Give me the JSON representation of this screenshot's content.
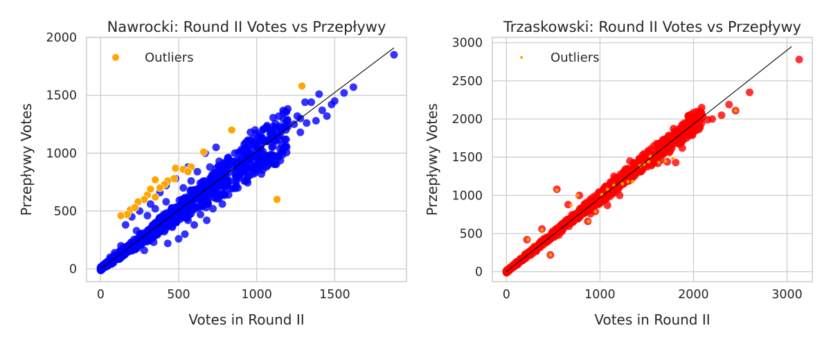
{
  "chart_data": [
    {
      "type": "scatter",
      "title": "Nawrocki: Round II Votes vs Przepływy",
      "xlabel": "Votes in Round II",
      "ylabel": "Przepływy Votes",
      "xlim": [
        -90,
        1960
      ],
      "ylim": [
        -110,
        2000
      ],
      "xticks": [
        0,
        500,
        1000,
        1500
      ],
      "yticks": [
        0,
        500,
        1000,
        1500,
        2000
      ],
      "grid": true,
      "legend": {
        "position": "top-left",
        "entries": [
          "Outliers"
        ]
      },
      "main_color": "#0000ff",
      "outlier_color": "#ffa500",
      "reference_line": {
        "from": [
          0,
          0
        ],
        "to": [
          1880,
          1910
        ],
        "color": "#000000"
      },
      "band": {
        "x_max": 1200,
        "lower_slope": 0.8,
        "upper_slope": 1.18
      },
      "points": [
        [
          430,
          220
        ],
        [
          1130,
          600
        ],
        [
          1880,
          1850
        ],
        [
          1620,
          1570
        ],
        [
          1560,
          1520
        ],
        [
          1480,
          1420
        ],
        [
          1350,
          1440
        ],
        [
          1310,
          1440
        ],
        [
          1450,
          1320
        ],
        [
          1420,
          1370
        ],
        [
          1280,
          1300
        ],
        [
          1240,
          1250
        ],
        [
          1200,
          1230
        ],
        [
          1160,
          1190
        ],
        [
          1100,
          1140
        ],
        [
          1050,
          1110
        ],
        [
          990,
          1200
        ],
        [
          950,
          1100
        ],
        [
          900,
          920
        ],
        [
          850,
          880
        ],
        [
          800,
          830
        ],
        [
          760,
          800
        ],
        [
          700,
          760
        ],
        [
          650,
          700
        ],
        [
          600,
          640
        ],
        [
          550,
          590
        ],
        [
          500,
          540
        ],
        [
          450,
          480
        ],
        [
          400,
          430
        ],
        [
          350,
          380
        ],
        [
          300,
          330
        ],
        [
          250,
          280
        ],
        [
          200,
          220
        ],
        [
          150,
          170
        ],
        [
          100,
          110
        ],
        [
          50,
          60
        ],
        [
          20,
          20
        ],
        [
          5,
          5
        ],
        [
          670,
          1000
        ],
        [
          740,
          1050
        ],
        [
          560,
          880
        ],
        [
          480,
          780
        ],
        [
          420,
          720
        ],
        [
          380,
          660
        ],
        [
          320,
          560
        ],
        [
          250,
          500
        ],
        [
          200,
          450
        ],
        [
          160,
          380
        ],
        [
          540,
          300
        ],
        [
          680,
          420
        ],
        [
          780,
          560
        ],
        [
          880,
          700
        ],
        [
          980,
          820
        ],
        [
          1080,
          960
        ],
        [
          600,
          380
        ],
        [
          720,
          520
        ],
        [
          820,
          640
        ],
        [
          920,
          760
        ],
        [
          500,
          260
        ],
        [
          640,
          470
        ],
        [
          340,
          230
        ],
        [
          280,
          160
        ],
        [
          460,
          360
        ],
        [
          560,
          420
        ],
        [
          860,
          1000
        ],
        [
          1000,
          1080
        ],
        [
          1150,
          1040
        ],
        [
          1040,
          940
        ],
        [
          1280,
          1180
        ],
        [
          1380,
          1280
        ],
        [
          1400,
          1510
        ],
        [
          1500,
          1450
        ],
        [
          1260,
          1320
        ],
        [
          760,
          930
        ],
        [
          660,
          600
        ],
        [
          420,
          580
        ],
        [
          530,
          700
        ],
        [
          230,
          330
        ],
        [
          130,
          200
        ],
        [
          90,
          140
        ],
        [
          60,
          100
        ],
        [
          30,
          50
        ],
        [
          180,
          180
        ],
        [
          120,
          90
        ],
        [
          260,
          220
        ],
        [
          360,
          300
        ],
        [
          400,
          380
        ],
        [
          460,
          520
        ],
        [
          580,
          760
        ],
        [
          620,
          840
        ],
        [
          700,
          880
        ],
        [
          960,
          1180
        ],
        [
          1040,
          1200
        ],
        [
          1120,
          1220
        ],
        [
          1180,
          1120
        ],
        [
          300,
          460
        ],
        [
          350,
          520
        ],
        [
          1010,
          950
        ],
        [
          930,
          980
        ],
        [
          1320,
          1260
        ]
      ],
      "outliers": [
        [
          1290,
          1580
        ],
        [
          840,
          1200
        ],
        [
          660,
          1010
        ],
        [
          580,
          880
        ],
        [
          480,
          870
        ],
        [
          530,
          860
        ],
        [
          560,
          840
        ],
        [
          470,
          780
        ],
        [
          430,
          760
        ],
        [
          350,
          770
        ],
        [
          410,
          730
        ],
        [
          380,
          700
        ],
        [
          300,
          640
        ],
        [
          350,
          620
        ],
        [
          280,
          600
        ],
        [
          240,
          580
        ],
        [
          190,
          510
        ],
        [
          170,
          470
        ],
        [
          130,
          460
        ],
        [
          220,
          530
        ],
        [
          320,
          690
        ],
        [
          1130,
          600
        ]
      ]
    },
    {
      "type": "scatter",
      "title": "Trzaskowski: Round II Votes vs Przepływy",
      "xlabel": "Votes in Round II",
      "ylabel": "Przepływy Votes",
      "xlim": [
        -150,
        3270
      ],
      "ylim": [
        -130,
        3070
      ],
      "xticks": [
        0,
        1000,
        2000,
        3000
      ],
      "yticks": [
        0,
        500,
        1000,
        1500,
        2000,
        2500,
        3000
      ],
      "grid": true,
      "legend": {
        "position": "top-left",
        "entries": [
          "Outliers"
        ]
      },
      "main_color": "#ff0000",
      "outlier_color": "#ffa500",
      "reference_line": {
        "from": [
          0,
          0
        ],
        "to": [
          3050,
          2950
        ],
        "color": "#000000"
      },
      "band": {
        "x_max": 2100,
        "lower_slope": 0.9,
        "upper_slope": 1.05
      },
      "points": [
        [
          3130,
          2780
        ],
        [
          2600,
          2350
        ],
        [
          2450,
          2110
        ],
        [
          2380,
          2190
        ],
        [
          2300,
          2050
        ],
        [
          2200,
          2000
        ],
        [
          2150,
          1990
        ],
        [
          2050,
          1980
        ],
        [
          1950,
          1990
        ],
        [
          1900,
          1880
        ],
        [
          1800,
          1780
        ],
        [
          1750,
          1650
        ],
        [
          1700,
          1600
        ],
        [
          1600,
          1550
        ],
        [
          1550,
          1500
        ],
        [
          1500,
          1400
        ],
        [
          1450,
          1360
        ],
        [
          1400,
          1300
        ],
        [
          1350,
          1250
        ],
        [
          1300,
          1200
        ],
        [
          1250,
          1160
        ],
        [
          1200,
          1100
        ],
        [
          1100,
          1050
        ],
        [
          1000,
          950
        ],
        [
          900,
          870
        ],
        [
          800,
          780
        ],
        [
          700,
          700
        ],
        [
          600,
          620
        ],
        [
          500,
          520
        ],
        [
          400,
          430
        ],
        [
          300,
          330
        ],
        [
          200,
          230
        ],
        [
          100,
          120
        ],
        [
          50,
          60
        ],
        [
          10,
          10
        ],
        [
          540,
          1080
        ],
        [
          780,
          1000
        ],
        [
          1810,
          1430
        ],
        [
          1210,
          1000
        ],
        [
          950,
          790
        ],
        [
          870,
          660
        ],
        [
          470,
          220
        ],
        [
          380,
          560
        ],
        [
          220,
          420
        ],
        [
          660,
          880
        ],
        [
          1650,
          1460
        ],
        [
          1720,
          1440
        ],
        [
          1620,
          1420
        ],
        [
          1550,
          1390
        ],
        [
          1880,
          1620
        ],
        [
          2000,
          1900
        ],
        [
          2100,
          2030
        ],
        [
          1980,
          1850
        ],
        [
          1850,
          1700
        ],
        [
          1420,
          1480
        ],
        [
          1150,
          1250
        ],
        [
          1060,
          1120
        ],
        [
          1320,
          1450
        ],
        [
          1080,
          870
        ],
        [
          900,
          760
        ],
        [
          560,
          480
        ],
        [
          320,
          270
        ],
        [
          150,
          170
        ],
        [
          30,
          40
        ],
        [
          1960,
          1800
        ],
        [
          1760,
          1720
        ],
        [
          1680,
          1700
        ]
      ],
      "outliers": [
        [
          2450,
          2110
        ],
        [
          1520,
          1440
        ],
        [
          1470,
          1410
        ],
        [
          1430,
          1390
        ],
        [
          1540,
          1510
        ],
        [
          1300,
          1180
        ],
        [
          1350,
          1180
        ],
        [
          1240,
          1150
        ],
        [
          1150,
          1130
        ],
        [
          1080,
          1080
        ],
        [
          1020,
          1010
        ],
        [
          950,
          790
        ],
        [
          880,
          660
        ],
        [
          760,
          1000
        ],
        [
          540,
          1070
        ],
        [
          470,
          220
        ],
        [
          380,
          550
        ],
        [
          230,
          420
        ],
        [
          690,
          870
        ],
        [
          1700,
          1450
        ],
        [
          1630,
          1430
        ],
        [
          1780,
          1480
        ]
      ]
    }
  ]
}
